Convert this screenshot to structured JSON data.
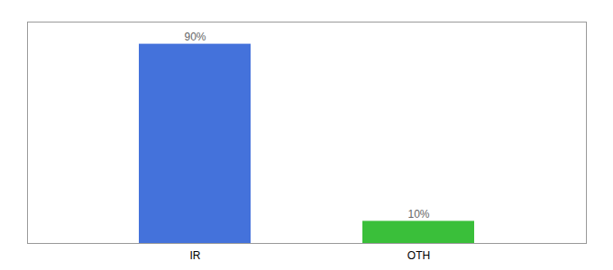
{
  "chart_data": {
    "type": "bar",
    "categories": [
      "IR",
      "OTH"
    ],
    "values": [
      90,
      10
    ],
    "value_labels": [
      "90%",
      "10%"
    ],
    "colors": [
      "#4472db",
      "#3abf3a"
    ],
    "ylim": [
      0,
      100
    ],
    "yticks": [],
    "data_labels": true,
    "tick_labels": "x",
    "grid": false
  }
}
